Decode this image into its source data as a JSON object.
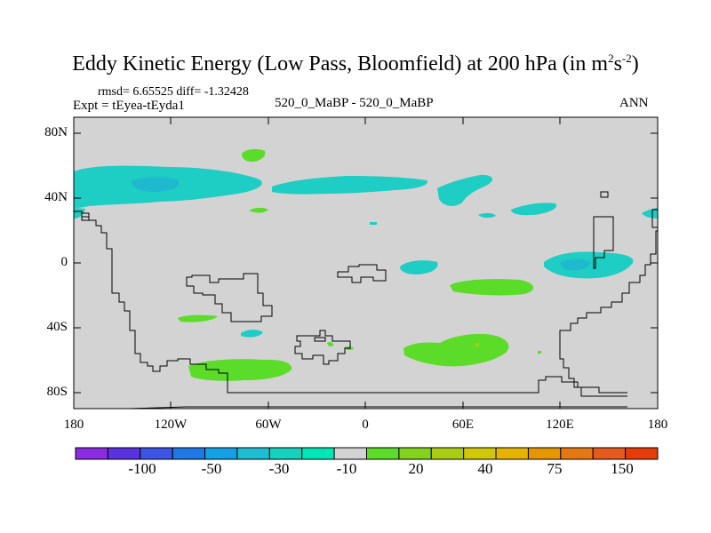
{
  "title": {
    "main": "Eddy Kinetic Energy (Low Pass, Bloomfield) at 200 hPa (in m",
    "sup1": "2",
    "mid": "s",
    "sup2": "-2",
    "end": ")"
  },
  "stats": {
    "rmsd_line": "rmsd= 6.65525 diff= -1.32428",
    "expt": "Expt = tEyea-tEyda1",
    "case": "520_0_MaBP - 520_0_MaBP",
    "period": "ANN"
  },
  "axes": {
    "lat_ticks": [
      "80N",
      "40N",
      "0",
      "40S",
      "80S"
    ],
    "lon_ticks": [
      "180",
      "120W",
      "60W",
      "0",
      "60E",
      "120E",
      "180"
    ]
  },
  "colorbar": {
    "colors": [
      "#8a2be2",
      "#5a32e0",
      "#3c55e6",
      "#1e78e6",
      "#14a0e6",
      "#1ebed2",
      "#14d2be",
      "#00e6b4",
      "#d3d3d3",
      "#5adc28",
      "#82d21e",
      "#aacd14",
      "#d2c80a",
      "#e6b400",
      "#e69600",
      "#e67814",
      "#e65a1e",
      "#e63c0a"
    ],
    "labels": [
      "-100",
      "-50",
      "-30",
      "-10",
      "20",
      "40",
      "75",
      "150"
    ]
  },
  "chart_data": {
    "type": "contour-map",
    "title": "Eddy Kinetic Energy (Low Pass, Bloomfield) at 200 hPa (in m2s-2)",
    "variable": "eddy kinetic energy difference",
    "units": "m2 s-2",
    "pressure_level_hPa": 200,
    "rmsd": 6.65525,
    "diff": -1.32428,
    "experiment": "tEyea-tEyda1",
    "case": "520_0_MaBP - 520_0_MaBP",
    "season": "ANN",
    "lon_range": [
      -180,
      180
    ],
    "lat_range": [
      -90,
      90
    ],
    "regions": [
      {
        "lon": [
          -180,
          -55
        ],
        "lat": [
          32,
          50
        ],
        "level": "-10 to -5",
        "color": "#1ecdc3"
      },
      {
        "lon": [
          -150,
          -115
        ],
        "lat": [
          40,
          47
        ],
        "level": "-30 to -10",
        "color": "#1eb9cf"
      },
      {
        "lon": [
          -60,
          20
        ],
        "lat": [
          42,
          52
        ],
        "level": "-10 to -5",
        "color": "#1ecdc3"
      },
      {
        "lon": [
          45,
          95
        ],
        "lat": [
          35,
          52
        ],
        "level": "-10 to -5",
        "color": "#1ecdc3"
      },
      {
        "lon": [
          110,
          180
        ],
        "lat": [
          -10,
          8
        ],
        "level": "-10 to -5",
        "color": "#1ecdc3"
      },
      {
        "lon": [
          20,
          45
        ],
        "lat": [
          -8,
          2
        ],
        "level": "-10 to -5",
        "color": "#1ecdc3"
      },
      {
        "lon": [
          -70,
          -60
        ],
        "lat": [
          63,
          70
        ],
        "level": "5 to 10",
        "color": "#5adc28"
      },
      {
        "lon": [
          50,
          105
        ],
        "lat": [
          -20,
          -12
        ],
        "level": "5 to 10",
        "color": "#5adc28"
      },
      {
        "lon": [
          25,
          105
        ],
        "lat": [
          -63,
          -45
        ],
        "level": "5 to 10",
        "color": "#5adc28"
      },
      {
        "lon": [
          -110,
          -50
        ],
        "lat": [
          -75,
          -60
        ],
        "level": "5 to 10",
        "color": "#5adc28"
      },
      {
        "lon": [
          -115,
          -90
        ],
        "lat": [
          -38,
          -33
        ],
        "level": "5 to 10",
        "color": "#5adc28"
      }
    ]
  }
}
